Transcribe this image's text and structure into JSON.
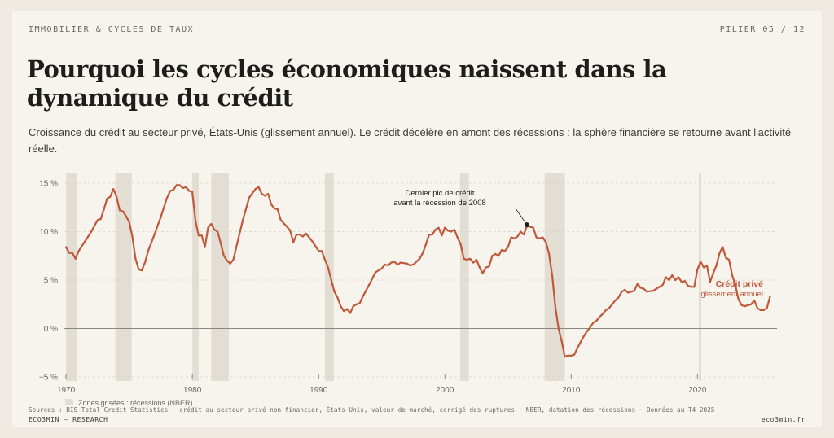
{
  "header": {
    "kicker": "IMMOBILIER & CYCLES DE TAUX",
    "page": "PILIER 05 / 12"
  },
  "title": "Pourquoi les cycles économiques naissent dans la dynamique du crédit",
  "subtitle": "Croissance du crédit au secteur privé, États-Unis (glissement annuel). Le crédit décélère en amont des récessions : la sphère financière se retourne avant l'activité réelle.",
  "footer": {
    "source": "Sources : BIS Total Credit Statistics — crédit au secteur privé non financier, États-Unis, valeur de marché, corrigé des ruptures · NBER, datation des récessions · Données au T4 2025",
    "brand": "ECO3MIN — RESEARCH",
    "site": "eco3min.fr"
  },
  "colors": {
    "line": "#c0583a",
    "recession": "#e3ded4",
    "background": "#f7f4ee"
  },
  "chart_data": {
    "type": "line",
    "xlim": [
      1969.8,
      2026.3
    ],
    "ylim": [
      -5,
      15
    ],
    "x_ticks": [
      {
        "value": 1970,
        "label": "1970"
      },
      {
        "value": 1980,
        "label": "1980"
      },
      {
        "value": 1990,
        "label": "1990"
      },
      {
        "value": 2000,
        "label": "2000"
      },
      {
        "value": 2010,
        "label": "2010"
      },
      {
        "value": 2020,
        "label": "2020"
      }
    ],
    "y_ticks": [
      {
        "value": -5,
        "label": "−5 %"
      },
      {
        "value": 0,
        "label": "0 %"
      },
      {
        "value": 5,
        "label": "5 %"
      },
      {
        "value": 10,
        "label": "10 %"
      },
      {
        "value": 15,
        "label": "15 %"
      }
    ],
    "grid": "horizontal dashed",
    "series": [
      {
        "name": "Crédit privé",
        "sublabel": "glissement annuel",
        "points": [
          [
            1970.0,
            8.4
          ],
          [
            1970.25,
            7.8
          ],
          [
            1970.5,
            7.8
          ],
          [
            1970.75,
            7.2
          ],
          [
            1971.0,
            8.0
          ],
          [
            1971.5,
            9.0
          ],
          [
            1972.0,
            10.0
          ],
          [
            1972.5,
            11.2
          ],
          [
            1972.75,
            11.3
          ],
          [
            1973.0,
            12.3
          ],
          [
            1973.25,
            13.4
          ],
          [
            1973.5,
            13.6
          ],
          [
            1973.75,
            14.4
          ],
          [
            1974.0,
            13.6
          ],
          [
            1974.25,
            12.2
          ],
          [
            1974.5,
            12.1
          ],
          [
            1974.75,
            11.6
          ],
          [
            1975.0,
            11.0
          ],
          [
            1975.25,
            9.5
          ],
          [
            1975.5,
            7.2
          ],
          [
            1975.75,
            6.1
          ],
          [
            1976.0,
            6.0
          ],
          [
            1976.25,
            6.8
          ],
          [
            1976.5,
            8.0
          ],
          [
            1977.0,
            9.7
          ],
          [
            1977.5,
            11.5
          ],
          [
            1978.0,
            13.5
          ],
          [
            1978.25,
            14.2
          ],
          [
            1978.5,
            14.3
          ],
          [
            1978.75,
            14.8
          ],
          [
            1979.0,
            14.8
          ],
          [
            1979.25,
            14.5
          ],
          [
            1979.5,
            14.6
          ],
          [
            1979.75,
            14.2
          ],
          [
            1980.0,
            14.1
          ],
          [
            1980.25,
            11.1
          ],
          [
            1980.5,
            9.6
          ],
          [
            1980.75,
            9.6
          ],
          [
            1981.0,
            8.4
          ],
          [
            1981.25,
            10.4
          ],
          [
            1981.5,
            10.8
          ],
          [
            1981.75,
            10.2
          ],
          [
            1982.0,
            10.0
          ],
          [
            1982.25,
            8.8
          ],
          [
            1982.5,
            7.5
          ],
          [
            1982.75,
            7.0
          ],
          [
            1983.0,
            6.7
          ],
          [
            1983.25,
            7.1
          ],
          [
            1983.5,
            8.5
          ],
          [
            1984.0,
            11.2
          ],
          [
            1984.5,
            13.5
          ],
          [
            1985.0,
            14.4
          ],
          [
            1985.25,
            14.6
          ],
          [
            1985.5,
            13.9
          ],
          [
            1985.75,
            13.7
          ],
          [
            1986.0,
            13.9
          ],
          [
            1986.25,
            12.8
          ],
          [
            1986.5,
            12.4
          ],
          [
            1986.75,
            12.3
          ],
          [
            1987.0,
            11.2
          ],
          [
            1987.5,
            10.5
          ],
          [
            1987.75,
            10.1
          ],
          [
            1988.0,
            8.9
          ],
          [
            1988.25,
            9.7
          ],
          [
            1988.5,
            9.7
          ],
          [
            1988.75,
            9.5
          ],
          [
            1989.0,
            9.8
          ],
          [
            1989.25,
            9.4
          ],
          [
            1989.5,
            9.0
          ],
          [
            1989.75,
            8.5
          ],
          [
            1990.0,
            8.0
          ],
          [
            1990.25,
            8.0
          ],
          [
            1990.5,
            7.1
          ],
          [
            1990.75,
            6.3
          ],
          [
            1991.0,
            5.0
          ],
          [
            1991.25,
            3.8
          ],
          [
            1991.5,
            3.2
          ],
          [
            1991.75,
            2.3
          ],
          [
            1992.0,
            1.8
          ],
          [
            1992.25,
            2.0
          ],
          [
            1992.5,
            1.6
          ],
          [
            1992.75,
            2.3
          ],
          [
            1993.0,
            2.5
          ],
          [
            1993.25,
            2.6
          ],
          [
            1993.5,
            3.3
          ],
          [
            1994.0,
            4.5
          ],
          [
            1994.5,
            5.8
          ],
          [
            1995.0,
            6.2
          ],
          [
            1995.25,
            6.6
          ],
          [
            1995.5,
            6.5
          ],
          [
            1995.75,
            6.8
          ],
          [
            1996.0,
            6.9
          ],
          [
            1996.25,
            6.6
          ],
          [
            1996.5,
            6.8
          ],
          [
            1997.0,
            6.7
          ],
          [
            1997.25,
            6.5
          ],
          [
            1997.5,
            6.6
          ],
          [
            1998.0,
            7.2
          ],
          [
            1998.25,
            7.8
          ],
          [
            1998.5,
            8.7
          ],
          [
            1998.75,
            9.7
          ],
          [
            1999.0,
            9.7
          ],
          [
            1999.25,
            10.2
          ],
          [
            1999.5,
            10.4
          ],
          [
            1999.75,
            9.6
          ],
          [
            2000.0,
            10.4
          ],
          [
            2000.25,
            10.1
          ],
          [
            2000.5,
            10.0
          ],
          [
            2000.75,
            10.2
          ],
          [
            2001.0,
            9.4
          ],
          [
            2001.25,
            8.7
          ],
          [
            2001.5,
            7.2
          ],
          [
            2001.75,
            7.1
          ],
          [
            2002.0,
            7.2
          ],
          [
            2002.25,
            6.8
          ],
          [
            2002.5,
            7.1
          ],
          [
            2002.75,
            6.3
          ],
          [
            2003.0,
            5.7
          ],
          [
            2003.25,
            6.3
          ],
          [
            2003.5,
            6.4
          ],
          [
            2003.75,
            7.5
          ],
          [
            2004.0,
            7.7
          ],
          [
            2004.25,
            7.5
          ],
          [
            2004.5,
            8.1
          ],
          [
            2004.75,
            8.0
          ],
          [
            2005.0,
            8.4
          ],
          [
            2005.25,
            9.4
          ],
          [
            2005.5,
            9.3
          ],
          [
            2005.75,
            9.5
          ],
          [
            2006.0,
            10.0
          ],
          [
            2006.25,
            9.7
          ],
          [
            2006.5,
            10.6
          ],
          [
            2006.75,
            10.5
          ],
          [
            2007.0,
            10.4
          ],
          [
            2007.25,
            9.4
          ],
          [
            2007.5,
            9.3
          ],
          [
            2007.75,
            9.4
          ],
          [
            2008.0,
            8.9
          ],
          [
            2008.25,
            7.7
          ],
          [
            2008.5,
            5.5
          ],
          [
            2008.75,
            2.2
          ],
          [
            2009.0,
            0.0
          ],
          [
            2009.25,
            -1.3
          ],
          [
            2009.5,
            -2.9
          ],
          [
            2009.75,
            -2.8
          ],
          [
            2010.0,
            -2.8
          ],
          [
            2010.25,
            -2.7
          ],
          [
            2010.5,
            -2.0
          ],
          [
            2010.75,
            -1.4
          ],
          [
            2011.0,
            -0.8
          ],
          [
            2011.25,
            -0.3
          ],
          [
            2011.5,
            0.1
          ],
          [
            2011.75,
            0.6
          ],
          [
            2012.0,
            0.8
          ],
          [
            2012.25,
            1.2
          ],
          [
            2012.5,
            1.5
          ],
          [
            2012.75,
            1.9
          ],
          [
            2013.0,
            2.1
          ],
          [
            2013.25,
            2.5
          ],
          [
            2013.5,
            2.9
          ],
          [
            2013.75,
            3.2
          ],
          [
            2014.0,
            3.8
          ],
          [
            2014.25,
            4.0
          ],
          [
            2014.5,
            3.7
          ],
          [
            2014.75,
            3.8
          ],
          [
            2015.0,
            3.9
          ],
          [
            2015.25,
            4.6
          ],
          [
            2015.5,
            4.2
          ],
          [
            2015.75,
            4.1
          ],
          [
            2016.0,
            3.8
          ],
          [
            2016.5,
            3.9
          ],
          [
            2016.75,
            4.1
          ],
          [
            2017.0,
            4.3
          ],
          [
            2017.25,
            4.5
          ],
          [
            2017.5,
            5.3
          ],
          [
            2017.75,
            5.0
          ],
          [
            2018.0,
            5.5
          ],
          [
            2018.25,
            5.0
          ],
          [
            2018.5,
            5.3
          ],
          [
            2018.75,
            4.8
          ],
          [
            2019.0,
            4.9
          ],
          [
            2019.25,
            4.4
          ],
          [
            2019.5,
            4.3
          ],
          [
            2019.75,
            4.3
          ],
          [
            2020.0,
            6.1
          ],
          [
            2020.25,
            6.9
          ],
          [
            2020.5,
            6.3
          ],
          [
            2020.75,
            6.5
          ],
          [
            2021.0,
            4.8
          ],
          [
            2021.25,
            5.7
          ],
          [
            2021.5,
            6.5
          ],
          [
            2021.75,
            7.8
          ],
          [
            2022.0,
            8.4
          ],
          [
            2022.25,
            7.3
          ],
          [
            2022.5,
            7.1
          ],
          [
            2022.75,
            5.5
          ],
          [
            2023.0,
            4.5
          ],
          [
            2023.25,
            3.0
          ],
          [
            2023.5,
            2.4
          ],
          [
            2023.75,
            2.3
          ],
          [
            2024.0,
            2.4
          ],
          [
            2024.25,
            2.5
          ],
          [
            2024.5,
            2.9
          ],
          [
            2024.75,
            2.1
          ],
          [
            2025.0,
            1.9
          ],
          [
            2025.25,
            1.9
          ],
          [
            2025.5,
            2.1
          ],
          [
            2025.75,
            3.3
          ]
        ]
      }
    ],
    "recessions": [
      [
        1970.0,
        1970.9
      ],
      [
        1973.9,
        1975.2
      ],
      [
        1980.0,
        1980.5
      ],
      [
        1981.5,
        1982.9
      ],
      [
        1990.5,
        1991.2
      ],
      [
        2001.2,
        2001.9
      ],
      [
        2007.9,
        2009.5
      ],
      [
        2020.1,
        2020.3
      ]
    ],
    "annotation": {
      "x": 2006.5,
      "y": 10.7,
      "lines": [
        "Dernier pic de crédit",
        "avant la récession de 2008"
      ]
    },
    "legend": {
      "recession_label": "Zones grisées : récessions (NBER)"
    }
  }
}
